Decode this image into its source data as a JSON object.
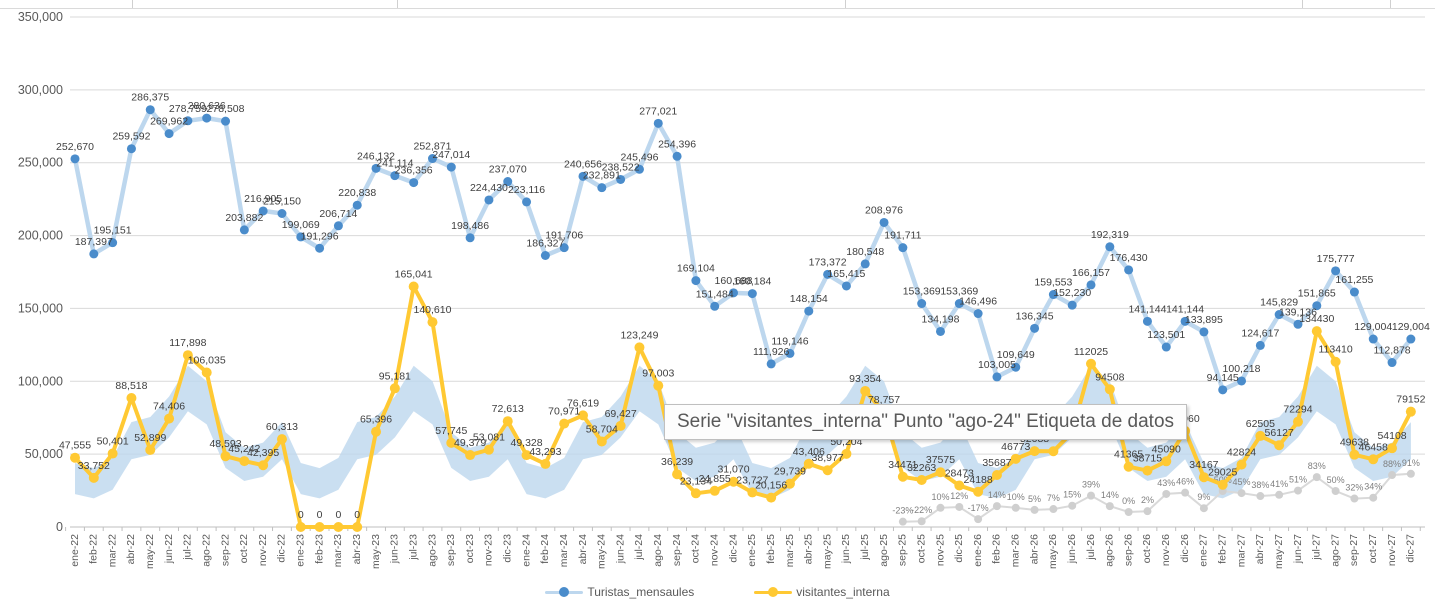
{
  "tooltip": {
    "text": "Serie \"visitantes_interna\" Punto \"ago-24\" Etiqueta de datos"
  },
  "legend": {
    "items": [
      {
        "label": "Turistas_mensaules",
        "line_color": "#BDD7EE",
        "marker_color": "#4A8CCB"
      },
      {
        "label": "visitantes_interna",
        "line_color": "#FFC933",
        "marker_color": "#FFC933"
      }
    ]
  },
  "chart_data": {
    "type": "line",
    "title": "",
    "xlabel": "",
    "ylabel": "",
    "grid": true,
    "legend_position": "bottom",
    "y_axis": {
      "min": 0,
      "max": 350000,
      "step": 50000,
      "tick_labels": [
        "0",
        "50,000",
        "100,000",
        "150,000",
        "200,000",
        "250,000",
        "300,000",
        "350,000"
      ]
    },
    "categories": [
      "ene-22",
      "feb-22",
      "mar-22",
      "abr-22",
      "may-22",
      "jun-22",
      "jul-22",
      "ago-22",
      "sep-22",
      "oct-22",
      "nov-22",
      "dic-22",
      "ene-23",
      "feb-23",
      "mar-23",
      "abr-23",
      "may-23",
      "jun-23",
      "jul-23",
      "ago-23",
      "sep-23",
      "oct-23",
      "nov-23",
      "dic-23",
      "ene-24",
      "feb-24",
      "mar-24",
      "abr-24",
      "may-24",
      "jun-24",
      "jul-24",
      "ago-24",
      "sep-24",
      "oct-24",
      "nov-24",
      "dic-24",
      "ene-25",
      "feb-25",
      "mar-25",
      "abr-25",
      "may-25",
      "jun-25",
      "jul-25",
      "ago-25",
      "sep-25",
      "oct-25",
      "nov-25",
      "dic-25",
      "ene-26",
      "feb-26",
      "mar-26",
      "abr-26",
      "may-26",
      "jun-26",
      "jul-26",
      "ago-26",
      "sep-26",
      "oct-26",
      "nov-26",
      "dic-26",
      "ene-27",
      "feb-27",
      "mar-27",
      "abr-27",
      "may-27",
      "jun-27",
      "jul-27",
      "ago-27",
      "sep-27",
      "oct-27",
      "nov-27",
      "dic-27"
    ],
    "series": [
      {
        "name": "Turistas_mensaules",
        "line_color": "#BDD7EE",
        "marker_color": "#4A8CCB",
        "values": [
          252670,
          187397,
          195151,
          259592,
          286375,
          269962,
          278759,
          280636,
          278508,
          203882,
          216905,
          215150,
          199069,
          191296,
          206714,
          220838,
          246132,
          241114,
          236356,
          252871,
          247014,
          198486,
          224430,
          237070,
          223116,
          186327,
          191706,
          240656,
          232891,
          238522,
          245496,
          277021,
          254396,
          169104,
          151484,
          160688,
          160184,
          111926,
          119146,
          148154,
          173372,
          165415,
          180548,
          208976,
          191711,
          153369,
          134198,
          153369,
          146496,
          103005,
          109649,
          136345,
          159553,
          152230,
          166157,
          192319,
          176430,
          141144,
          123501,
          141144,
          133895,
          94145,
          100218,
          124617,
          145829,
          139136,
          151865,
          175777,
          161255,
          129004,
          112878,
          129004
        ],
        "labels": [
          "252,670",
          "187,397",
          "195,151",
          "259,592",
          "286,375",
          "269,962",
          "278,759",
          "280,636",
          "278,508",
          "203,882",
          "216,905",
          "215,150",
          "199,069",
          "191,296",
          "206,714",
          "220,838",
          "246,132",
          "241,114",
          "236,356",
          "252,871",
          "247,014",
          "198,486",
          "224,430",
          "237,070",
          "223,116",
          "186,327",
          "191,706",
          "240,656",
          "232,891",
          "238,522",
          "245,496",
          "277,021",
          "254,396",
          "169,104",
          "151,484",
          "160,688",
          "160,184",
          "111,926",
          "119,146",
          "148,154",
          "173,372",
          "165,415",
          "180,548",
          "208,976",
          "191,711",
          "153,369",
          "134,198",
          "153,369",
          "146,496",
          "103,005",
          "109,649",
          "136,345",
          "159,553",
          "152,230",
          "166,157",
          "192,319",
          "176,430",
          "141,144",
          "123,501",
          "141,144",
          "133,895",
          "94,145",
          "100,218",
          "124,617",
          "145,829",
          "139,136",
          "151,865",
          "175,777",
          "161,255",
          "129,004",
          "112,878",
          "129,004"
        ]
      },
      {
        "name": "visitantes_interna",
        "line_color": "#FFC933",
        "marker_color": "#FFC933",
        "values": [
          47555,
          33752,
          50401,
          88518,
          52899,
          74406,
          117898,
          106035,
          48593,
          45242,
          42395,
          60313,
          0,
          0,
          0,
          0,
          65396,
          95181,
          165041,
          140610,
          57745,
          49379,
          53081,
          72613,
          49328,
          43293,
          70971,
          76619,
          58704,
          69427,
          123249,
          97003,
          36239,
          23134,
          24855,
          31070,
          23727,
          20156,
          29739,
          43406,
          38977,
          50204,
          93354,
          78757,
          34471,
          32263,
          37575,
          28473,
          24188,
          35687,
          46773,
          52088,
          52000,
          65000,
          112025,
          94508,
          41365,
          38715,
          45090,
          65960,
          34167,
          29025,
          42824,
          62505,
          56127,
          72294,
          134430,
          113410,
          49638,
          46458,
          54108,
          79152
        ],
        "labels": [
          "47,555",
          "33,752",
          "50,401",
          "88,518",
          "52,899",
          "74,406",
          "117,898",
          "106,035",
          "48,593",
          "45,242",
          "42,395",
          "60,313",
          "0",
          "0",
          "0",
          "0",
          "65,396",
          "95,181",
          "165,041",
          "140,610",
          "57,745",
          "49,379",
          "53,081",
          "72,613",
          "49,328",
          "43,293",
          "70,971",
          "76,619",
          "58,704",
          "69,427",
          "123,249",
          "97,003",
          "36,239",
          "23,134",
          "24,855",
          "31,070",
          "23,727",
          "20,156",
          "29,739",
          "43,406",
          "38,977",
          "50,204",
          "93,354",
          "78,757",
          "34471",
          "32263",
          "37575",
          "28473",
          "24188",
          "35687",
          "46773",
          "52088",
          "",
          "",
          "112025",
          "94508",
          "41365",
          "38715",
          "45090",
          "65960",
          "34167",
          "29025",
          "42824",
          "62505",
          "56127",
          "72294",
          "134430",
          "113410",
          "49638",
          "46458",
          "54108",
          "79152"
        ]
      },
      {
        "name": "growth_pct",
        "line_color": "#D9D9D9",
        "marker_color": "#CFCFCF",
        "start_index": 44,
        "values_pct": [
          -23,
          -22,
          10,
          12,
          -17,
          14,
          10,
          5,
          7,
          15,
          39,
          14,
          0,
          2,
          43,
          46,
          9,
          50,
          45,
          38,
          41,
          51,
          83,
          50,
          32,
          34,
          88,
          91
        ],
        "labels": [
          "-23%",
          "-22%",
          "10%",
          "12%",
          "-17%",
          "14%",
          "10%",
          "5%",
          "7%",
          "15%",
          "39%",
          "14%",
          "0%",
          "2%",
          "43%",
          "46%",
          "9%",
          "50%",
          "45%",
          "38%",
          "41%",
          "51%",
          "83%",
          "50%",
          "32%",
          "34%",
          "88%",
          "91%"
        ]
      }
    ],
    "band": {
      "fill_color": "#BDD7EE",
      "opacity": 0.8
    }
  }
}
